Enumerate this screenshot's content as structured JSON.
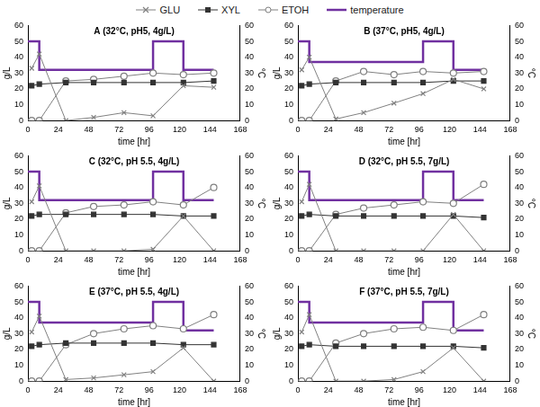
{
  "chart_data": [
    {
      "type": "line",
      "title": "A (32°C, pH5, 4g/L)",
      "legend": "top",
      "grid": false,
      "x_label": "time [hr]",
      "y_label": "g/L",
      "y2_label": "°C",
      "xlim": [
        0,
        168
      ],
      "xticks": [
        0,
        24,
        48,
        72,
        96,
        120,
        144,
        168
      ],
      "ylim": [
        0,
        60
      ],
      "yticks": [
        0,
        10,
        20,
        30,
        40,
        50,
        60
      ],
      "y2lim": [
        0,
        60
      ],
      "y2ticks": [
        0,
        10,
        20,
        30,
        40,
        50,
        60
      ],
      "series": [
        {
          "name": "GLU",
          "color": "#808080",
          "marker": "x",
          "x": [
            3,
            9,
            30,
            52,
            76,
            99,
            123,
            147
          ],
          "values": [
            33,
            42,
            0,
            2,
            5,
            3,
            22,
            21
          ]
        },
        {
          "name": "XYL",
          "color": "#333333",
          "marker": "square",
          "x": [
            3,
            9,
            30,
            52,
            76,
            99,
            123,
            147
          ],
          "values": [
            22,
            23,
            24,
            24,
            24,
            24,
            24,
            25
          ]
        },
        {
          "name": "ETOH",
          "color": "#808080",
          "marker": "circle",
          "x": [
            3,
            9,
            30,
            52,
            76,
            99,
            123,
            147
          ],
          "values": [
            0,
            0,
            25,
            26,
            28,
            30,
            29,
            30
          ]
        },
        {
          "name": "temperature",
          "color": "#7030a0",
          "marker": "none",
          "axis": "y2",
          "x": [
            0,
            9,
            9,
            99,
            99,
            123,
            123,
            147
          ],
          "values": [
            50,
            50,
            32,
            32,
            50,
            50,
            32,
            32
          ]
        }
      ]
    },
    {
      "type": "line",
      "title": "B (37°C, pH5, 4g/L)",
      "legend": false,
      "grid": false,
      "x_label": "time [hr]",
      "y_label": "g/L",
      "y2_label": "°C",
      "xlim": [
        0,
        168
      ],
      "xticks": [
        0,
        24,
        48,
        72,
        96,
        120,
        144,
        168
      ],
      "ylim": [
        0,
        60
      ],
      "yticks": [
        0,
        10,
        20,
        30,
        40,
        50,
        60
      ],
      "y2lim": [
        0,
        60
      ],
      "y2ticks": [
        0,
        10,
        20,
        30,
        40,
        50,
        60
      ],
      "series": [
        {
          "name": "GLU",
          "color": "#808080",
          "marker": "x",
          "x": [
            3,
            9,
            30,
            52,
            76,
            99,
            123,
            147
          ],
          "values": [
            32,
            40,
            1,
            5,
            11,
            17,
            26,
            20
          ]
        },
        {
          "name": "XYL",
          "color": "#333333",
          "marker": "square",
          "x": [
            3,
            9,
            30,
            52,
            76,
            99,
            123,
            147
          ],
          "values": [
            22,
            23,
            24,
            24,
            24,
            24,
            25,
            25
          ]
        },
        {
          "name": "ETOH",
          "color": "#808080",
          "marker": "circle",
          "x": [
            3,
            9,
            30,
            52,
            76,
            99,
            123,
            147
          ],
          "values": [
            0,
            0,
            25,
            31,
            29,
            31,
            30,
            31
          ]
        },
        {
          "name": "temperature",
          "color": "#7030a0",
          "marker": "none",
          "axis": "y2",
          "x": [
            0,
            9,
            9,
            99,
            99,
            123,
            123,
            147
          ],
          "values": [
            50,
            50,
            37,
            37,
            50,
            50,
            32,
            32
          ]
        }
      ]
    },
    {
      "type": "line",
      "title": "C (32°C, pH 5.5, 4g/L)",
      "legend": false,
      "grid": false,
      "x_label": "time [hr]",
      "y_label": "g/L",
      "y2_label": "°C",
      "xlim": [
        0,
        168
      ],
      "xticks": [
        0,
        24,
        48,
        72,
        96,
        120,
        144,
        168
      ],
      "ylim": [
        0,
        60
      ],
      "yticks": [
        0,
        10,
        20,
        30,
        40,
        50,
        60
      ],
      "y2lim": [
        0,
        60
      ],
      "y2ticks": [
        0,
        10,
        20,
        30,
        40,
        50,
        60
      ],
      "series": [
        {
          "name": "GLU",
          "color": "#808080",
          "marker": "x",
          "x": [
            3,
            9,
            30,
            52,
            76,
            99,
            123,
            147
          ],
          "values": [
            31,
            41,
            0,
            0,
            0,
            1,
            22,
            0
          ]
        },
        {
          "name": "XYL",
          "color": "#333333",
          "marker": "square",
          "x": [
            3,
            9,
            30,
            52,
            76,
            99,
            123,
            147
          ],
          "values": [
            22,
            23,
            23,
            23,
            23,
            23,
            22,
            22
          ]
        },
        {
          "name": "ETOH",
          "color": "#808080",
          "marker": "circle",
          "x": [
            3,
            9,
            30,
            52,
            76,
            99,
            123,
            147
          ],
          "values": [
            0,
            0,
            24,
            28,
            29,
            31,
            29,
            40
          ]
        },
        {
          "name": "temperature",
          "color": "#7030a0",
          "marker": "none",
          "axis": "y2",
          "x": [
            0,
            9,
            9,
            99,
            99,
            123,
            123,
            147
          ],
          "values": [
            50,
            50,
            32,
            32,
            50,
            50,
            32,
            32
          ]
        }
      ]
    },
    {
      "type": "line",
      "title": "D (32°C, pH 5.5, 7g/L)",
      "legend": false,
      "grid": false,
      "x_label": "time [hr]",
      "y_label": "g/L",
      "y2_label": "°C",
      "xlim": [
        0,
        168
      ],
      "xticks": [
        0,
        24,
        48,
        72,
        96,
        120,
        144,
        168
      ],
      "ylim": [
        0,
        60
      ],
      "yticks": [
        0,
        10,
        20,
        30,
        40,
        50,
        60
      ],
      "y2lim": [
        0,
        60
      ],
      "y2ticks": [
        0,
        10,
        20,
        30,
        40,
        50,
        60
      ],
      "series": [
        {
          "name": "GLU",
          "color": "#808080",
          "marker": "x",
          "x": [
            3,
            9,
            30,
            52,
            76,
            99,
            123,
            147
          ],
          "values": [
            31,
            42,
            0,
            0,
            0,
            0,
            23,
            0
          ]
        },
        {
          "name": "XYL",
          "color": "#333333",
          "marker": "square",
          "x": [
            3,
            9,
            30,
            52,
            76,
            99,
            123,
            147
          ],
          "values": [
            22,
            23,
            22,
            22,
            22,
            22,
            22,
            21
          ]
        },
        {
          "name": "ETOH",
          "color": "#808080",
          "marker": "circle",
          "x": [
            3,
            9,
            30,
            52,
            76,
            99,
            123,
            147
          ],
          "values": [
            0,
            0,
            23,
            27,
            29,
            31,
            30,
            42
          ]
        },
        {
          "name": "temperature",
          "color": "#7030a0",
          "marker": "none",
          "axis": "y2",
          "x": [
            0,
            9,
            9,
            99,
            99,
            123,
            123,
            147
          ],
          "values": [
            50,
            50,
            32,
            32,
            50,
            50,
            32,
            32
          ]
        }
      ]
    },
    {
      "type": "line",
      "title": "E (37°C, pH 5.5, 4g/L)",
      "legend": false,
      "grid": false,
      "x_label": "time [hr]",
      "y_label": "g/L",
      "y2_label": "°C",
      "xlim": [
        0,
        168
      ],
      "xticks": [
        0,
        24,
        48,
        72,
        96,
        120,
        144,
        168
      ],
      "ylim": [
        0,
        60
      ],
      "yticks": [
        0,
        10,
        20,
        30,
        40,
        50,
        60
      ],
      "y2lim": [
        0,
        60
      ],
      "y2ticks": [
        0,
        10,
        20,
        30,
        40,
        50,
        60
      ],
      "series": [
        {
          "name": "GLU",
          "color": "#808080",
          "marker": "x",
          "x": [
            3,
            9,
            30,
            52,
            76,
            99,
            123,
            147
          ],
          "values": [
            31,
            41,
            1,
            2,
            4,
            6,
            21,
            0
          ]
        },
        {
          "name": "XYL",
          "color": "#333333",
          "marker": "square",
          "x": [
            3,
            9,
            30,
            52,
            76,
            99,
            123,
            147
          ],
          "values": [
            22,
            23,
            24,
            24,
            24,
            24,
            23,
            23
          ]
        },
        {
          "name": "ETOH",
          "color": "#808080",
          "marker": "circle",
          "x": [
            3,
            9,
            30,
            52,
            76,
            99,
            123,
            147
          ],
          "values": [
            0,
            0,
            23,
            30,
            33,
            35,
            33,
            42
          ]
        },
        {
          "name": "temperature",
          "color": "#7030a0",
          "marker": "none",
          "axis": "y2",
          "x": [
            0,
            9,
            9,
            99,
            99,
            123,
            123,
            147
          ],
          "values": [
            50,
            50,
            37,
            37,
            50,
            50,
            32,
            32
          ]
        }
      ]
    },
    {
      "type": "line",
      "title": "F (37°C, pH 5.5, 7g/L)",
      "legend": false,
      "grid": false,
      "x_label": "time [hr]",
      "y_label": "g/L",
      "y2_label": "°C",
      "xlim": [
        0,
        168
      ],
      "xticks": [
        0,
        24,
        48,
        72,
        96,
        120,
        144,
        168
      ],
      "ylim": [
        0,
        60
      ],
      "yticks": [
        0,
        10,
        20,
        30,
        40,
        50,
        60
      ],
      "y2lim": [
        0,
        60
      ],
      "y2ticks": [
        0,
        10,
        20,
        30,
        40,
        50,
        60
      ],
      "series": [
        {
          "name": "GLU",
          "color": "#808080",
          "marker": "x",
          "x": [
            3,
            9,
            30,
            52,
            76,
            99,
            123,
            147
          ],
          "values": [
            31,
            42,
            0,
            0,
            1,
            6,
            21,
            0
          ]
        },
        {
          "name": "XYL",
          "color": "#333333",
          "marker": "square",
          "x": [
            3,
            9,
            30,
            52,
            76,
            99,
            123,
            147
          ],
          "values": [
            22,
            23,
            22,
            22,
            22,
            22,
            22,
            21
          ]
        },
        {
          "name": "ETOH",
          "color": "#808080",
          "marker": "circle",
          "x": [
            3,
            9,
            30,
            52,
            76,
            99,
            123,
            147
          ],
          "values": [
            0,
            0,
            24,
            30,
            33,
            34,
            32,
            42
          ]
        },
        {
          "name": "temperature",
          "color": "#7030a0",
          "marker": "none",
          "axis": "y2",
          "x": [
            0,
            9,
            9,
            99,
            99,
            123,
            123,
            147
          ],
          "values": [
            50,
            50,
            37,
            37,
            50,
            50,
            32,
            32
          ]
        }
      ]
    }
  ]
}
